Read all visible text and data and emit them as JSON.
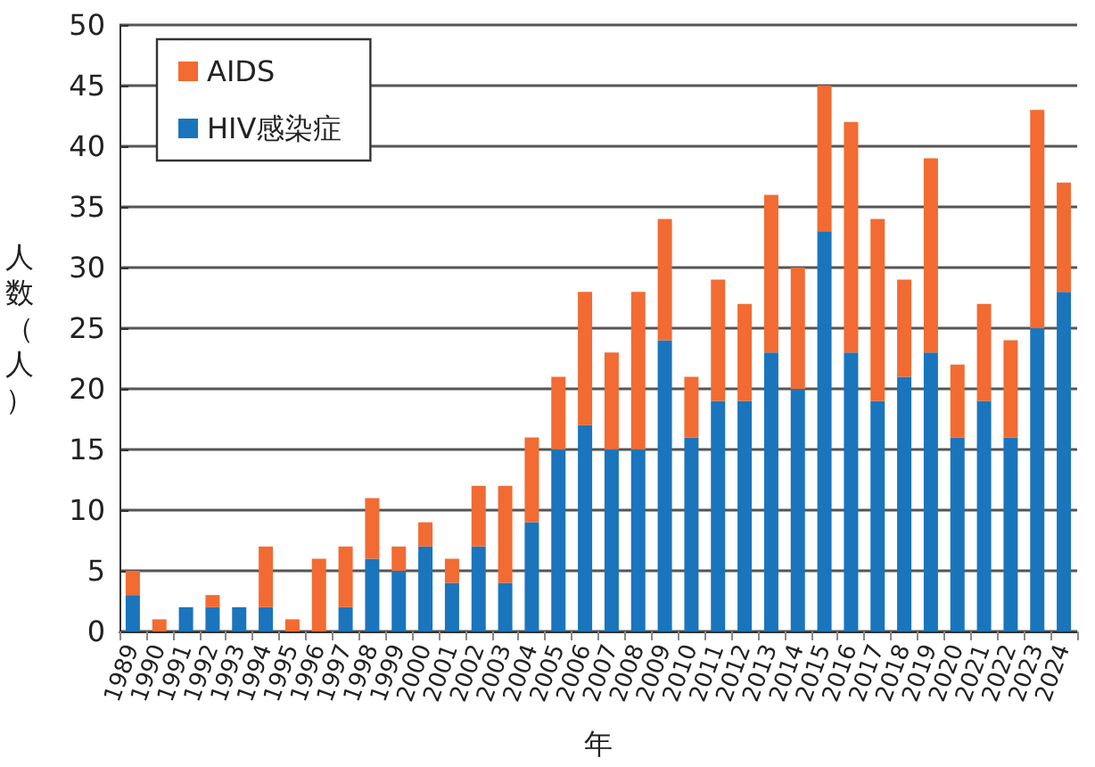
{
  "chart_data": {
    "type": "bar",
    "stacked": true,
    "xlabel": "年",
    "ylabel": "人数（人）",
    "categories": [
      "1989",
      "1990",
      "1991",
      "1992",
      "1993",
      "1994",
      "1995",
      "1996",
      "1997",
      "1998",
      "1999",
      "2000",
      "2001",
      "2002",
      "2003",
      "2004",
      "2005",
      "2006",
      "2007",
      "2008",
      "2009",
      "2010",
      "2011",
      "2012",
      "2013",
      "2014",
      "2015",
      "2016",
      "2017",
      "2018",
      "2019",
      "2020",
      "2021",
      "2022",
      "2023",
      "2024"
    ],
    "series": [
      {
        "name": "HIV感染症",
        "color": "#1a75bc",
        "values": [
          3,
          0,
          2,
          2,
          2,
          2,
          0,
          0,
          2,
          6,
          5,
          7,
          4,
          7,
          4,
          9,
          15,
          17,
          15,
          15,
          24,
          16,
          19,
          19,
          23,
          20,
          33,
          23,
          19,
          21,
          23,
          16,
          19,
          16,
          25,
          28
        ]
      },
      {
        "name": "AIDS",
        "color": "#f26b32",
        "values": [
          2,
          1,
          0,
          1,
          0,
          5,
          1,
          6,
          5,
          5,
          2,
          2,
          2,
          5,
          8,
          7,
          6,
          11,
          8,
          13,
          10,
          5,
          10,
          8,
          13,
          10,
          12,
          19,
          15,
          8,
          16,
          6,
          8,
          8,
          18,
          9
        ]
      }
    ],
    "ylim": [
      0,
      50
    ],
    "yticks": [
      0,
      5,
      10,
      15,
      20,
      25,
      30,
      35,
      40,
      45,
      50
    ],
    "grid": "y",
    "legend": "top left"
  }
}
